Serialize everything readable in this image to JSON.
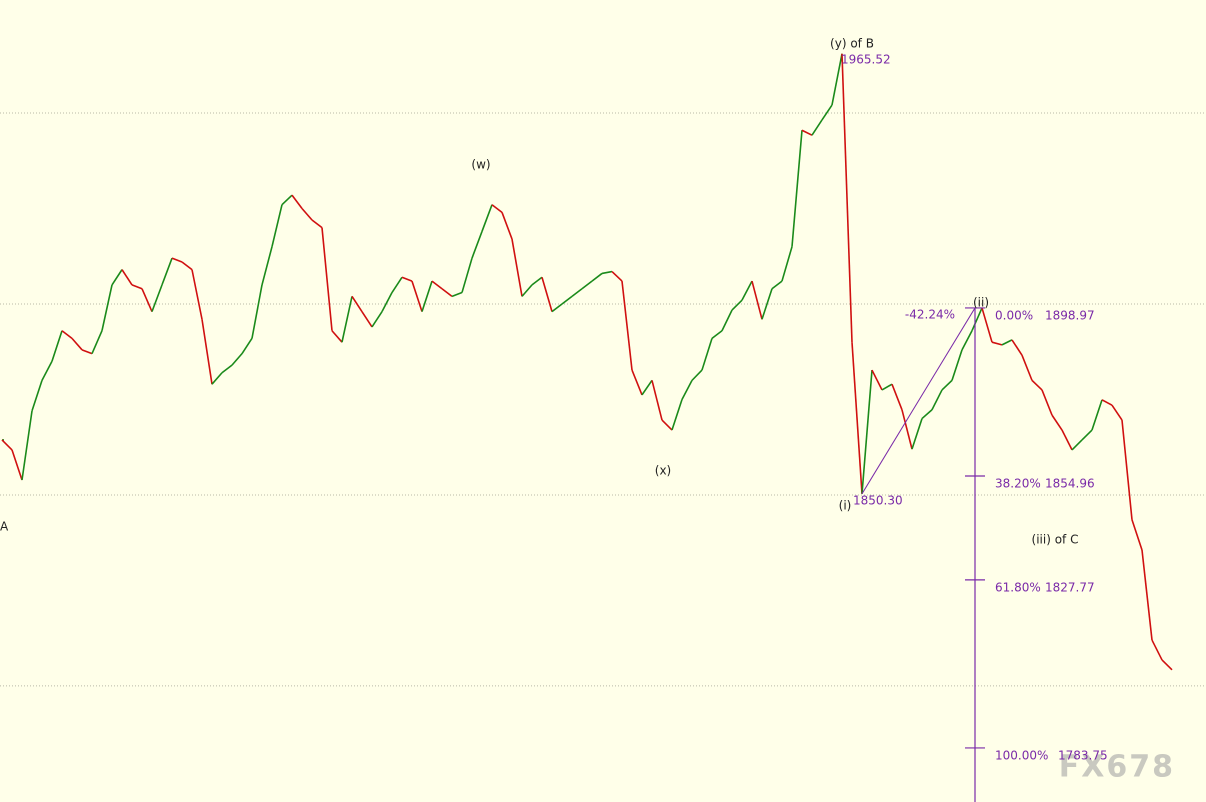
{
  "chart_data": {
    "type": "line",
    "values": [
      1864.4,
      1861.8,
      1853.9,
      1872,
      1880,
      1885,
      1893,
      1891,
      1888,
      1887,
      1893,
      1905,
      1909,
      1905,
      1904,
      1898,
      1905,
      1912,
      1911,
      1909,
      1896,
      1879,
      1882,
      1884,
      1887,
      1891,
      1905,
      1915,
      1926,
      1928.5,
      1925,
      1922,
      1920,
      1893,
      1890,
      1902,
      1898,
      1894,
      1898,
      1903,
      1907,
      1906,
      1898,
      1906,
      1904,
      1902,
      1903,
      1912,
      1919,
      1926,
      1924,
      1917,
      1902,
      1905,
      1907,
      1898,
      1900,
      1902,
      1904,
      1906,
      1908,
      1908.5,
      1906,
      1882.7,
      1876.2,
      1880,
      1869.6,
      1867,
      1875,
      1880,
      1882.7,
      1891,
      1893,
      1898.4,
      1901,
      1906,
      1896,
      1904,
      1906,
      1915,
      1945.5,
      1944.2,
      1948.2,
      1952.1,
      1965.52,
      1890,
      1850.3,
      1882.7,
      1877.5,
      1879,
      1872.3,
      1862,
      1870,
      1872.3,
      1877.5,
      1880,
      1888,
      1893,
      1898.97,
      1890,
      1889.3,
      1890.6,
      1886.6,
      1880,
      1877.5,
      1870.9,
      1867,
      1861.8,
      1864.4,
      1867,
      1874.9,
      1873.5,
      1869.6,
      1843.5,
      1835.6,
      1812,
      1806.8,
      1804.2
    ],
    "up_color": "#1a8a1a",
    "down_color": "#d01010",
    "ylim": [
      1769.6,
      1979.6
    ],
    "gridlines": [
      1800,
      1850,
      1900,
      1950
    ],
    "wave_labels": [
      "(w)",
      "(x)",
      "(iii) of C",
      "A"
    ],
    "extremes": [
      {
        "label": "(y) of B",
        "price": 1965.52
      },
      {
        "label": "(i)",
        "price": {
          "value": 1850.3,
          "label": "1850.30"
        }
      }
    ],
    "fibonacci": {
      "color": "#7a2aa8",
      "start_label": "-42.24%",
      "end_label": "(ii)",
      "levels": [
        {
          "ratio": "0.00%",
          "price": 1898.97
        },
        {
          "ratio": "38.20%",
          "price": 1854.96
        },
        {
          "ratio": "61.80%",
          "price": 1827.77
        },
        {
          "ratio": "100.00%",
          "price": 1783.75
        }
      ]
    },
    "watermark": "FX678"
  }
}
